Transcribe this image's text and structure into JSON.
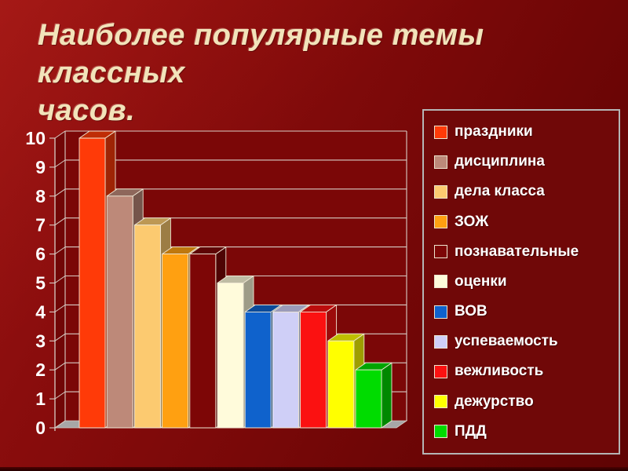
{
  "slide": {
    "title_line1": "Наиболее популярные темы классных",
    "title_line2": "часов.",
    "title_color": "#f2e3ba",
    "background_top_color": "#9b1414",
    "background_bottom_color": "#5f0404"
  },
  "chart_data": {
    "type": "bar",
    "style": "3d",
    "title": "Наиболее популярные темы классных часов.",
    "categories": [
      "праздники",
      "дисциплина",
      "дела класса",
      "ЗОЖ",
      "познавательные",
      "оценки",
      "ВОВ",
      "успеваемость",
      "вежливость",
      "дежурство",
      "ПДД"
    ],
    "values": [
      10,
      8,
      7,
      6,
      6,
      5,
      4,
      4,
      4,
      3,
      2
    ],
    "colors": [
      "#ff3a08",
      "#bd8979",
      "#fcca70",
      "#ffa011",
      "#7d0606",
      "#fffbdb",
      "#0f62cc",
      "#cfcff7",
      "#fb1111",
      "#ffff00",
      "#00dc00"
    ],
    "xlabel": "",
    "ylabel": "",
    "ylim": [
      0,
      10
    ],
    "yticks": [
      0,
      1,
      2,
      3,
      4,
      5,
      6,
      7,
      8,
      9,
      10
    ],
    "grid": true,
    "legend_position": "right",
    "axis_text_color": "#ffffff",
    "gridline_color": "#d8cdc5",
    "wall_color": "#7b0707",
    "floor_color": "#a7a7a7",
    "face_outline_color": "#f0e7d4"
  }
}
